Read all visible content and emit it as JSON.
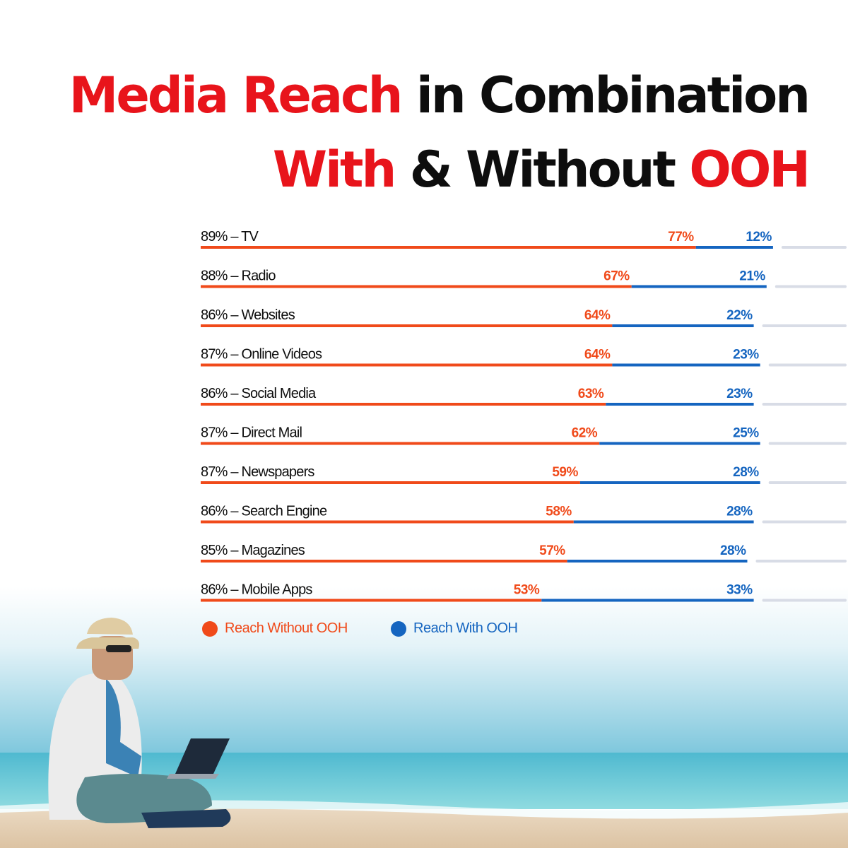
{
  "title": {
    "line1": [
      {
        "text": "Media Reach",
        "accent": true
      },
      {
        "text": " in Combination",
        "accent": false
      }
    ],
    "line2": [
      {
        "text": "With",
        "accent": true
      },
      {
        "text": " & Without ",
        "accent": false
      },
      {
        "text": "OOH",
        "accent": true
      }
    ]
  },
  "colors": {
    "accent_red": "#e8141b",
    "without_ooh": "#f04a1a",
    "with_ooh": "#1565c0",
    "text_dark": "#0d0d0d",
    "track": "#d8dce6"
  },
  "chart_data": {
    "type": "bar",
    "orientation": "horizontal",
    "stacked": true,
    "categories": [
      "TV",
      "Radio",
      "Websites",
      "Online Videos",
      "Social Media",
      "Direct Mail",
      "Newspapers",
      "Search Engine",
      "Magazines",
      "Mobile Apps"
    ],
    "labels": [
      "89% – TV",
      "88% – Radio",
      "86% – Websites",
      "87% – Online Videos",
      "86% – Social Media",
      "87% – Direct Mail",
      "87% – Newspapers",
      "86% – Search Engine",
      "85% – Magazines",
      "86% – Mobile Apps"
    ],
    "series": [
      {
        "name": "Reach Without OOH",
        "values": [
          77,
          67,
          64,
          64,
          63,
          62,
          59,
          58,
          57,
          53
        ],
        "color": "#f04a1a"
      },
      {
        "name": "Reach With OOH",
        "values": [
          12,
          21,
          22,
          23,
          23,
          25,
          28,
          28,
          28,
          33
        ],
        "color": "#1565c0"
      }
    ],
    "value_labels": {
      "without": [
        "77%",
        "67%",
        "64%",
        "64%",
        "63%",
        "62%",
        "59%",
        "58%",
        "57%",
        "53%"
      ],
      "with": [
        "12%",
        "21%",
        "22%",
        "23%",
        "23%",
        "25%",
        "28%",
        "28%",
        "28%",
        "33%"
      ]
    },
    "xlim": [
      0,
      100
    ],
    "legend_position": "bottom-left",
    "grid": false
  },
  "legend": [
    {
      "label": "Reach Without OOH",
      "color": "#f04a1a"
    },
    {
      "label": "Reach With OOH",
      "color": "#1565c0"
    }
  ]
}
